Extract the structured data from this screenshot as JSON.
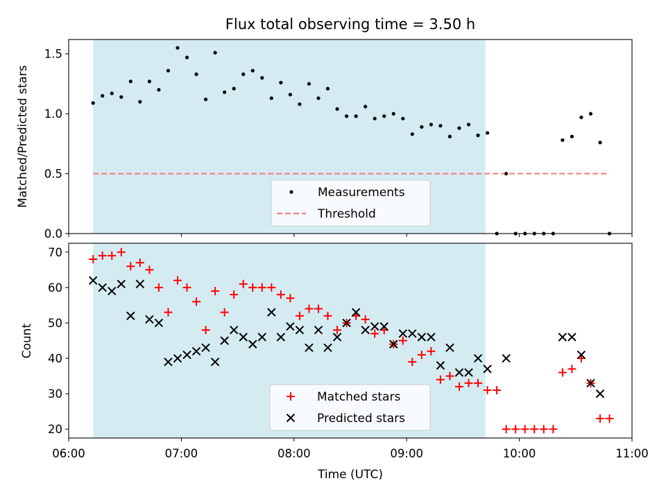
{
  "chart_data": [
    {
      "type": "scatter",
      "title": "Flux total observing time = 3.50 h",
      "xlabel": "",
      "ylabel": "Matched/Predicted stars",
      "xlim": [
        "06:00",
        "11:00"
      ],
      "ylim": [
        0,
        1.62
      ],
      "yticks": [
        "0.0",
        "0.5",
        "1.0",
        "1.5"
      ],
      "xtick_positions": [
        "06:00",
        "07:00",
        "08:00",
        "09:00",
        "10:00",
        "11:00"
      ],
      "shaded_span": {
        "start": "06:13",
        "end": "09:42",
        "color": "#add8e6"
      },
      "legend": {
        "location": "lower center",
        "entries": [
          "Measurements",
          "Threshold"
        ]
      },
      "series": [
        {
          "name": "Measurements",
          "marker": "dot",
          "color": "#000000",
          "x": [
            "06:13",
            "06:18",
            "06:23",
            "06:28",
            "06:33",
            "06:38",
            "06:43",
            "06:48",
            "06:53",
            "06:58",
            "07:03",
            "07:08",
            "07:13",
            "07:18",
            "07:23",
            "07:28",
            "07:33",
            "07:38",
            "07:43",
            "07:48",
            "07:53",
            "07:58",
            "08:03",
            "08:08",
            "08:13",
            "08:18",
            "08:23",
            "08:28",
            "08:33",
            "08:38",
            "08:43",
            "08:48",
            "08:53",
            "08:58",
            "09:03",
            "09:08",
            "09:13",
            "09:18",
            "09:23",
            "09:28",
            "09:33",
            "09:38",
            "09:43",
            "09:48",
            "09:53",
            "09:58",
            "10:03",
            "10:08",
            "10:13",
            "10:18",
            "10:23",
            "10:28",
            "10:33",
            "10:38",
            "10:43",
            "10:48"
          ],
          "y": [
            1.09,
            1.15,
            1.17,
            1.14,
            1.27,
            1.1,
            1.27,
            1.2,
            1.36,
            1.55,
            1.47,
            1.33,
            1.12,
            1.51,
            1.18,
            1.21,
            1.33,
            1.36,
            1.3,
            1.13,
            1.26,
            1.16,
            1.08,
            1.25,
            1.13,
            1.21,
            1.04,
            0.98,
            0.98,
            1.06,
            0.96,
            0.98,
            1.0,
            0.96,
            0.83,
            0.89,
            0.91,
            0.9,
            0.81,
            0.88,
            0.91,
            0.82,
            0.84,
            0.0,
            0.5,
            0.0,
            0.0,
            0.0,
            0.0,
            0.0,
            0.78,
            0.81,
            0.97,
            1.0,
            0.76,
            0.0
          ]
        },
        {
          "name": "Threshold",
          "style": "dashed",
          "color": "#f08080",
          "x": [
            "06:13",
            "10:48"
          ],
          "y": [
            0.5,
            0.5
          ]
        }
      ]
    },
    {
      "type": "scatter",
      "title": "",
      "xlabel": "Time (UTC)",
      "ylabel": "Count",
      "xlim": [
        "06:00",
        "11:00"
      ],
      "ylim": [
        17.5,
        72.5
      ],
      "yticks": [
        "20",
        "30",
        "40",
        "50",
        "60",
        "70"
      ],
      "xticks": [
        "06:00",
        "07:00",
        "08:00",
        "09:00",
        "10:00",
        "11:00"
      ],
      "shaded_span": {
        "start": "06:13",
        "end": "09:42",
        "color": "#add8e6"
      },
      "legend": {
        "location": "lower center",
        "entries": [
          "Matched stars",
          "Predicted stars"
        ]
      },
      "series": [
        {
          "name": "Matched stars",
          "marker": "plus",
          "color": "#ff0000",
          "x": [
            "06:13",
            "06:18",
            "06:23",
            "06:28",
            "06:33",
            "06:38",
            "06:43",
            "06:48",
            "06:53",
            "06:58",
            "07:03",
            "07:08",
            "07:13",
            "07:18",
            "07:23",
            "07:28",
            "07:33",
            "07:38",
            "07:43",
            "07:48",
            "07:53",
            "07:58",
            "08:03",
            "08:08",
            "08:13",
            "08:18",
            "08:23",
            "08:28",
            "08:33",
            "08:38",
            "08:43",
            "08:48",
            "08:53",
            "08:58",
            "09:03",
            "09:08",
            "09:13",
            "09:18",
            "09:23",
            "09:28",
            "09:33",
            "09:38",
            "09:43",
            "09:48",
            "09:53",
            "09:58",
            "10:03",
            "10:08",
            "10:13",
            "10:18",
            "10:23",
            "10:28",
            "10:33",
            "10:38",
            "10:43",
            "10:48"
          ],
          "y": [
            68,
            69,
            69,
            70,
            66,
            67,
            65,
            60,
            53,
            62,
            60,
            56,
            48,
            59,
            53,
            58,
            61,
            60,
            60,
            60,
            58,
            57,
            52,
            54,
            54,
            52,
            48,
            50,
            52,
            51,
            47,
            48,
            44,
            45,
            39,
            41,
            42,
            34,
            35,
            32,
            33,
            33,
            31,
            31,
            20,
            20,
            20,
            20,
            20,
            20,
            36,
            37,
            40,
            33,
            23,
            23
          ]
        },
        {
          "name": "Predicted stars",
          "marker": "x",
          "color": "#000000",
          "x": [
            "06:13",
            "06:18",
            "06:23",
            "06:28",
            "06:33",
            "06:38",
            "06:43",
            "06:48",
            "06:53",
            "06:58",
            "07:03",
            "07:08",
            "07:13",
            "07:18",
            "07:23",
            "07:28",
            "07:33",
            "07:38",
            "07:43",
            "07:48",
            "07:53",
            "07:58",
            "08:03",
            "08:08",
            "08:13",
            "08:18",
            "08:23",
            "08:28",
            "08:33",
            "08:38",
            "08:43",
            "08:48",
            "08:53",
            "08:58",
            "09:03",
            "09:08",
            "09:13",
            "09:18",
            "09:23",
            "09:28",
            "09:33",
            "09:38",
            "09:43",
            "09:53",
            "10:23",
            "10:28",
            "10:33",
            "10:38",
            "10:43"
          ],
          "y": [
            62,
            60,
            59,
            61,
            52,
            61,
            51,
            50,
            39,
            40,
            41,
            42,
            43,
            39,
            45,
            48,
            46,
            44,
            46,
            53,
            46,
            49,
            48,
            43,
            48,
            43,
            46,
            50,
            53,
            48,
            49,
            49,
            44,
            47,
            47,
            46,
            46,
            38,
            43,
            36,
            36,
            40,
            37,
            40,
            46,
            46,
            41,
            33,
            30
          ]
        }
      ]
    }
  ]
}
